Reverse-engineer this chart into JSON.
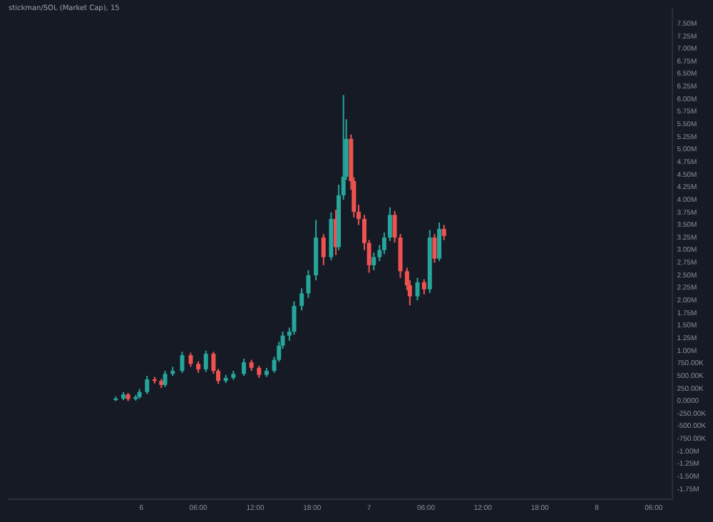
{
  "chart_data": {
    "type": "candlestick",
    "title": "stickman/SOL (Market Cap), 15",
    "x": [
      "--01-05T21:18",
      "--01-05T22:06",
      "--01-05T22:36",
      "--01-05T23:24",
      "--01-05T23:48",
      "--01-06T00:36",
      "--01-06T01:24",
      "--01-06T02:06",
      "--01-06T02:30",
      "--01-06T03:18",
      "--01-06T04:18",
      "--01-06T05:12",
      "--01-06T06:00",
      "--01-06T06:48",
      "--01-06T07:36",
      "--01-06T08:06",
      "--01-06T08:54",
      "--01-06T09:42",
      "--01-06T10:48",
      "--01-06T11:36",
      "--01-06T12:24",
      "--01-06T13:12",
      "--01-06T14:00",
      "--01-06T14:30",
      "--01-06T14:54",
      "--01-06T15:36",
      "--01-06T16:06",
      "--01-06T16:54",
      "--01-06T17:36",
      "--01-06T18:24",
      "--01-06T19:12",
      "--01-06T20:00",
      "--01-06T20:30",
      "--01-06T20:48",
      "--01-06T21:18",
      "--01-06T21:36",
      "--01-06T22:06",
      "--01-06T22:24",
      "--01-06T22:54",
      "--01-06T23:30",
      "--01-07T00:00",
      "--01-07T00:30",
      "--01-07T01:06",
      "--01-07T01:36",
      "--01-07T02:12",
      "--01-07T02:42",
      "--01-07T03:18",
      "--01-07T04:00",
      "--01-07T04:18",
      "--01-07T05:06",
      "--01-07T05:48",
      "--01-07T06:24",
      "--01-07T06:54",
      "--01-07T07:24",
      "--01-07T07:54"
    ],
    "ohlc": [
      [
        20000,
        90000,
        0,
        50000
      ],
      [
        50000,
        180000,
        20000,
        130000
      ],
      [
        130000,
        160000,
        0,
        40000
      ],
      [
        40000,
        120000,
        10000,
        80000
      ],
      [
        80000,
        240000,
        50000,
        180000
      ],
      [
        180000,
        500000,
        140000,
        430000
      ],
      [
        430000,
        480000,
        350000,
        400000
      ],
      [
        400000,
        440000,
        260000,
        320000
      ],
      [
        320000,
        600000,
        280000,
        540000
      ],
      [
        540000,
        680000,
        500000,
        600000
      ],
      [
        600000,
        980000,
        560000,
        910000
      ],
      [
        910000,
        960000,
        680000,
        740000
      ],
      [
        740000,
        790000,
        560000,
        630000
      ],
      [
        630000,
        1000000,
        580000,
        940000
      ],
      [
        940000,
        980000,
        540000,
        600000
      ],
      [
        600000,
        640000,
        340000,
        400000
      ],
      [
        400000,
        520000,
        360000,
        460000
      ],
      [
        460000,
        600000,
        420000,
        540000
      ],
      [
        540000,
        840000,
        500000,
        770000
      ],
      [
        770000,
        820000,
        600000,
        660000
      ],
      [
        660000,
        700000,
        460000,
        520000
      ],
      [
        520000,
        660000,
        480000,
        600000
      ],
      [
        600000,
        880000,
        560000,
        820000
      ],
      [
        820000,
        1180000,
        780000,
        1100000
      ],
      [
        1100000,
        1380000,
        1040000,
        1300000
      ],
      [
        1300000,
        1460000,
        1200000,
        1380000
      ],
      [
        1380000,
        1980000,
        1320000,
        1890000
      ],
      [
        1890000,
        2240000,
        1800000,
        2140000
      ],
      [
        2140000,
        2600000,
        2050000,
        2500000
      ],
      [
        2500000,
        3600000,
        2400000,
        3250000
      ],
      [
        3250000,
        3320000,
        2700000,
        2860000
      ],
      [
        2860000,
        3750000,
        2800000,
        3620000
      ],
      [
        3620000,
        3800000,
        2900000,
        3060000
      ],
      [
        3060000,
        4300000,
        3000000,
        4090000
      ],
      [
        4090000,
        6080000,
        4000000,
        4460000
      ],
      [
        4460000,
        5600000,
        4400000,
        5210000
      ],
      [
        5210000,
        5300000,
        4200000,
        4370000
      ],
      [
        4370000,
        4450000,
        3650000,
        3760000
      ],
      [
        3760000,
        3900000,
        3500000,
        3620000
      ],
      [
        3620000,
        3700000,
        3000000,
        3140000
      ],
      [
        3140000,
        3200000,
        2550000,
        2700000
      ],
      [
        2700000,
        2950000,
        2600000,
        2860000
      ],
      [
        2860000,
        3100000,
        2780000,
        3000000
      ],
      [
        3000000,
        3350000,
        2920000,
        3250000
      ],
      [
        3250000,
        3850000,
        3180000,
        3700000
      ],
      [
        3700000,
        3780000,
        3150000,
        3250000
      ],
      [
        3250000,
        3320000,
        2450000,
        2580000
      ],
      [
        2580000,
        2650000,
        2200000,
        2300000
      ],
      [
        2300000,
        2400000,
        1900000,
        2080000
      ],
      [
        2080000,
        2450000,
        2000000,
        2360000
      ],
      [
        2360000,
        2420000,
        2120000,
        2220000
      ],
      [
        2220000,
        3400000,
        2150000,
        3250000
      ],
      [
        3250000,
        3320000,
        2750000,
        2830000
      ],
      [
        2830000,
        3550000,
        2780000,
        3420000
      ],
      [
        3420000,
        3500000,
        3200000,
        3280000
      ]
    ],
    "colors": [
      "#26a69a",
      "#26a69a",
      "#ef5350",
      "#26a69a",
      "#26a69a",
      "#26a69a",
      "#ef5350",
      "#ef5350",
      "#26a69a",
      "#26a69a",
      "#26a69a",
      "#ef5350",
      "#ef5350",
      "#26a69a",
      "#ef5350",
      "#ef5350",
      "#26a69a",
      "#26a69a",
      "#26a69a",
      "#ef5350",
      "#ef5350",
      "#26a69a",
      "#26a69a",
      "#26a69a",
      "#26a69a",
      "#26a69a",
      "#26a69a",
      "#26a69a",
      "#26a69a",
      "#26a69a",
      "#ef5350",
      "#26a69a",
      "#ef5350",
      "#26a69a",
      "#26a69a",
      "#26a69a",
      "#ef5350",
      "#ef5350",
      "#ef5350",
      "#ef5350",
      "#ef5350",
      "#26a69a",
      "#26a69a",
      "#26a69a",
      "#26a69a",
      "#ef5350",
      "#ef5350",
      "#ef5350",
      "#ef5350",
      "#26a69a",
      "#ef5350",
      "#26a69a",
      "#ef5350",
      "#26a69a",
      "#ef5350"
    ],
    "xlim": [
      "--01-05T10:00",
      "--01-08T08:00"
    ],
    "xticks": [
      {
        "value": "--01-06",
        "label": "6"
      },
      {
        "value": "--01-06T06:00",
        "label": "06:00"
      },
      {
        "value": "--01-06T12:00",
        "label": "12:00"
      },
      {
        "value": "--01-06T18:00",
        "label": "18:00"
      },
      {
        "value": "--01-07",
        "label": "7"
      },
      {
        "value": "--01-07T06:00",
        "label": "06:00"
      },
      {
        "value": "--01-07T12:00",
        "label": "12:00"
      },
      {
        "value": "--01-07T18:00",
        "label": "18:00"
      },
      {
        "value": "--01-08",
        "label": "8"
      },
      {
        "value": "--01-08T06:00",
        "label": "06:00"
      }
    ],
    "ylim": [
      -1950000,
      7800000
    ],
    "yticks": [
      {
        "value": -1750000,
        "label": "-1.75M"
      },
      {
        "value": -1500000,
        "label": "-1.50M"
      },
      {
        "value": -1250000,
        "label": "-1.25M"
      },
      {
        "value": -1000000,
        "label": "-1.00M"
      },
      {
        "value": -750000,
        "label": "-750.00K"
      },
      {
        "value": -500000,
        "label": "-500.00K"
      },
      {
        "value": -250000,
        "label": "-250.00K"
      },
      {
        "value": 0,
        "label": "0.0000"
      },
      {
        "value": 250000,
        "label": "250.00K"
      },
      {
        "value": 500000,
        "label": "500.00K"
      },
      {
        "value": 750000,
        "label": "750.00K"
      },
      {
        "value": 1000000,
        "label": "1.00M"
      },
      {
        "value": 1250000,
        "label": "1.25M"
      },
      {
        "value": 1500000,
        "label": "1.50M"
      },
      {
        "value": 1750000,
        "label": "1.75M"
      },
      {
        "value": 2000000,
        "label": "2.00M"
      },
      {
        "value": 2250000,
        "label": "2.25M"
      },
      {
        "value": 2500000,
        "label": "2.50M"
      },
      {
        "value": 2750000,
        "label": "2.75M"
      },
      {
        "value": 3000000,
        "label": "3.00M"
      },
      {
        "value": 3250000,
        "label": "3.25M"
      },
      {
        "value": 3500000,
        "label": "3.50M"
      },
      {
        "value": 3750000,
        "label": "3.75M"
      },
      {
        "value": 4000000,
        "label": "4.00M"
      },
      {
        "value": 4250000,
        "label": "4.25M"
      },
      {
        "value": 4500000,
        "label": "4.50M"
      },
      {
        "value": 4750000,
        "label": "4.75M"
      },
      {
        "value": 5000000,
        "label": "5.00M"
      },
      {
        "value": 5250000,
        "label": "5.25M"
      },
      {
        "value": 5500000,
        "label": "5.50M"
      },
      {
        "value": 5750000,
        "label": "5.75M"
      },
      {
        "value": 6000000,
        "label": "6.00M"
      },
      {
        "value": 6250000,
        "label": "6.25M"
      },
      {
        "value": 6500000,
        "label": "6.50M"
      },
      {
        "value": 6750000,
        "label": "6.75M"
      },
      {
        "value": 7000000,
        "label": "7.00M"
      },
      {
        "value": 7250000,
        "label": "7.25M"
      },
      {
        "value": 7500000,
        "label": "7.50M"
      }
    ]
  }
}
